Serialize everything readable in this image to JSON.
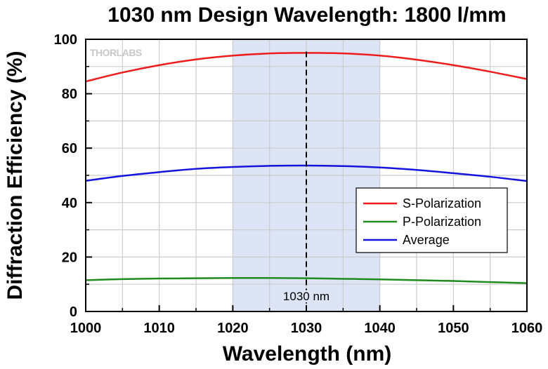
{
  "chart_data": {
    "type": "line",
    "title": "1030 nm Design Wavelength: 1800 l/mm",
    "xlabel": "Wavelength (nm)",
    "ylabel": "Diffraction Efficiency (%)",
    "xlim": [
      1000,
      1060
    ],
    "ylim": [
      0,
      100
    ],
    "xticks": [
      "1000",
      "1010",
      "1020",
      "1030",
      "1040",
      "1050",
      "1060"
    ],
    "yticks": [
      "0",
      "20",
      "40",
      "60",
      "80",
      "100"
    ],
    "grid": true,
    "legend_position": "lower-right",
    "watermark": "THORLABS",
    "highlight_band": {
      "x_start": 1020,
      "x_end": 1040,
      "color": "#dce4f5"
    },
    "annotation": {
      "x": 1030,
      "label": "1030 nm"
    },
    "x": [
      1000,
      1005,
      1010,
      1015,
      1020,
      1025,
      1030,
      1035,
      1040,
      1045,
      1050,
      1055,
      1060
    ],
    "series": [
      {
        "name": "S-Polarization",
        "color": "#ee1c1c",
        "values": [
          84.5,
          87.8,
          90.5,
          92.6,
          94.0,
          94.8,
          95.0,
          94.8,
          94.0,
          92.5,
          90.5,
          88.1,
          85.4
        ]
      },
      {
        "name": "P-Polarization",
        "color": "#1e8c1e",
        "values": [
          11.5,
          11.9,
          12.1,
          12.2,
          12.3,
          12.3,
          12.2,
          12.0,
          11.8,
          11.5,
          11.2,
          10.8,
          10.4
        ]
      },
      {
        "name": "Average",
        "color": "#1414dc",
        "values": [
          48.0,
          49.8,
          51.2,
          52.4,
          53.1,
          53.5,
          53.6,
          53.4,
          52.9,
          52.0,
          50.8,
          49.5,
          47.9
        ]
      }
    ]
  }
}
